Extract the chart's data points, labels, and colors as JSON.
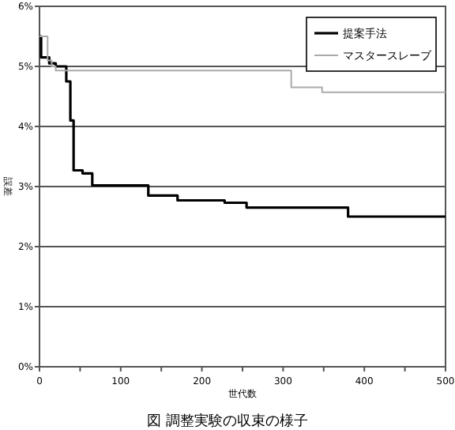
{
  "chart_data": {
    "type": "step",
    "xlabel": "世代数",
    "ylabel": "誤差",
    "annotations": [
      "図 調整実験の収束の様子"
    ],
    "xlim": [
      0,
      500
    ],
    "ylim": [
      0,
      6
    ],
    "xticks": [
      0,
      {
        "value": 50,
        "label": null
      },
      100,
      {
        "value": 150,
        "label": null
      },
      200,
      {
        "value": 250,
        "label": null
      },
      300,
      {
        "value": 350,
        "label": null
      },
      400,
      {
        "value": 450,
        "label": null
      },
      500
    ],
    "yticks": [
      {
        "value": 0,
        "label": "0%"
      },
      {
        "value": 1,
        "label": "1%"
      },
      {
        "value": 2,
        "label": "2%"
      },
      {
        "value": 3,
        "label": "3%"
      },
      {
        "value": 4,
        "label": "4%"
      },
      {
        "value": 5,
        "label": "5%"
      },
      {
        "value": 6,
        "label": "6%"
      }
    ],
    "grid": "y",
    "legend": "top right",
    "series": [
      {
        "name": "提案手法",
        "color": "#000000",
        "x": [
          0,
          2,
          12,
          20,
          33,
          38,
          42,
          53,
          65,
          134,
          170,
          228,
          255,
          380,
          500
        ],
        "values": [
          5.5,
          5.15,
          5.05,
          5.0,
          4.75,
          4.1,
          3.27,
          3.22,
          3.02,
          2.85,
          2.77,
          2.73,
          2.65,
          2.5,
          2.5
        ]
      },
      {
        "name": "マスタースレーブ",
        "color": "#aaaaaa",
        "x": [
          0,
          10,
          15,
          20,
          310,
          348,
          500
        ],
        "values": [
          5.5,
          5.1,
          5.0,
          4.93,
          4.65,
          4.57,
          4.57
        ]
      }
    ]
  }
}
